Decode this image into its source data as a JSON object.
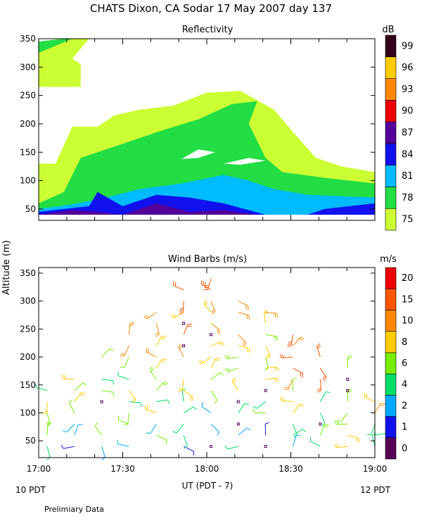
{
  "figure": {
    "title": "CHATS Dixon, CA  Sodar  17 May 2007  day 137",
    "shared_ylabel": "Altitude (m)",
    "xlabel": "UT  (PDT - 7)",
    "local_left": "10 PDT",
    "local_right": "12 PDT",
    "footer": "Prelimiary Data"
  },
  "chart_data": [
    {
      "type": "heatmap",
      "title": "Reflectivity",
      "colorbar_title": "dB",
      "x_time_range": [
        "17:00",
        "19:00"
      ],
      "ylim": [
        30,
        350
      ],
      "yticks": [
        50,
        100,
        150,
        200,
        250,
        300,
        350
      ],
      "colorbar": [
        {
          "label": "75",
          "color": "#ccff33"
        },
        {
          "label": "78",
          "color": "#22dd44"
        },
        {
          "label": "81",
          "color": "#00bbff"
        },
        {
          "label": "84",
          "color": "#1111ee"
        },
        {
          "label": "87",
          "color": "#550099"
        },
        {
          "label": "90",
          "color": "#ee0000"
        },
        {
          "label": "93",
          "color": "#ff8800"
        },
        {
          "label": "96",
          "color": "#ffcc00"
        },
        {
          "label": "99",
          "color": "#33001a"
        }
      ],
      "contours": [
        {
          "level": 75,
          "color": "#ccff33",
          "points": [
            [
              17.0,
              130
            ],
            [
              17.1,
              130
            ],
            [
              17.2,
              195
            ],
            [
              17.35,
              195
            ],
            [
              17.45,
              215
            ],
            [
              17.6,
              225
            ],
            [
              17.8,
              232
            ],
            [
              18.0,
              255
            ],
            [
              18.2,
              258
            ],
            [
              18.4,
              225
            ],
            [
              18.5,
              190
            ],
            [
              18.65,
              140
            ],
            [
              18.8,
              125
            ],
            [
              19.0,
              115
            ],
            [
              19.0,
              40
            ],
            [
              17.0,
              40
            ]
          ]
        },
        {
          "level": 75,
          "color": "#ccff33",
          "points": [
            [
              17.0,
              265
            ],
            [
              17.0,
              345
            ],
            [
              17.15,
              350
            ],
            [
              17.3,
              350
            ],
            [
              17.2,
              315
            ],
            [
              17.25,
              305
            ],
            [
              17.25,
              265
            ]
          ]
        },
        {
          "level": 78,
          "color": "#22dd44",
          "points": [
            [
              17.0,
              60
            ],
            [
              17.15,
              80
            ],
            [
              17.25,
              140
            ],
            [
              17.4,
              155
            ],
            [
              17.55,
              170
            ],
            [
              17.75,
              190
            ],
            [
              17.95,
              208
            ],
            [
              18.15,
              235
            ],
            [
              18.3,
              240
            ],
            [
              18.25,
              200
            ],
            [
              18.35,
              140
            ],
            [
              18.45,
              115
            ],
            [
              18.7,
              105
            ],
            [
              19.0,
              95
            ],
            [
              19.0,
              40
            ],
            [
              17.0,
              40
            ]
          ]
        },
        {
          "level": 78,
          "color": "#22dd44",
          "points": [
            [
              17.0,
              325
            ],
            [
              17.0,
              345
            ],
            [
              17.15,
              350
            ],
            [
              17.2,
              350
            ]
          ]
        },
        {
          "level": 81,
          "color": "#00bbff",
          "points": [
            [
              17.0,
              50
            ],
            [
              17.2,
              58
            ],
            [
              17.4,
              70
            ],
            [
              17.6,
              85
            ],
            [
              17.85,
              95
            ],
            [
              18.1,
              110
            ],
            [
              18.25,
              100
            ],
            [
              18.4,
              85
            ],
            [
              18.6,
              75
            ],
            [
              19.0,
              70
            ],
            [
              19.0,
              40
            ],
            [
              17.0,
              40
            ]
          ]
        },
        {
          "level": 84,
          "color": "#1111ee",
          "points": [
            [
              17.0,
              45
            ],
            [
              17.3,
              55
            ],
            [
              17.35,
              80
            ],
            [
              17.5,
              55
            ],
            [
              17.7,
              75
            ],
            [
              17.9,
              70
            ],
            [
              18.1,
              60
            ],
            [
              18.35,
              40
            ],
            [
              18.6,
              40
            ],
            [
              18.7,
              50
            ],
            [
              19.0,
              60
            ],
            [
              19.0,
              40
            ],
            [
              17.0,
              40
            ]
          ]
        },
        {
          "level": 87,
          "color": "#550099",
          "points": [
            [
              17.0,
              40
            ],
            [
              17.2,
              48
            ],
            [
              17.35,
              45
            ],
            [
              17.5,
              40
            ],
            [
              17.7,
              60
            ],
            [
              17.9,
              45
            ],
            [
              18.1,
              48
            ],
            [
              18.3,
              40
            ]
          ]
        }
      ],
      "holes": [
        {
          "points": [
            [
              17.85,
              138
            ],
            [
              17.95,
              155
            ],
            [
              18.05,
              150
            ],
            [
              17.95,
              140
            ]
          ]
        },
        {
          "points": [
            [
              18.1,
              130
            ],
            [
              18.25,
              140
            ],
            [
              18.35,
              135
            ],
            [
              18.2,
              128
            ]
          ]
        }
      ]
    },
    {
      "type": "scatter",
      "title": "Wind Barbs (m/s)",
      "colorbar_title": "m/s",
      "x_time_range": [
        "17:00",
        "19:00"
      ],
      "x_ticks": [
        "17:00",
        "17:30",
        "18:00",
        "18:30",
        "19:00"
      ],
      "ylim": [
        20,
        360
      ],
      "yticks": [
        50,
        100,
        150,
        200,
        250,
        300,
        350
      ],
      "colorbar": [
        {
          "label": "0",
          "color": "#550055"
        },
        {
          "label": "1",
          "color": "#1111ee"
        },
        {
          "label": "2",
          "color": "#00aaff"
        },
        {
          "label": "4",
          "color": "#00dd66"
        },
        {
          "label": "6",
          "color": "#77ee00"
        },
        {
          "label": "8",
          "color": "#ffcc00"
        },
        {
          "label": "10",
          "color": "#ff8800"
        },
        {
          "label": "15",
          "color": "#ff5500"
        },
        {
          "label": "20",
          "color": "#ee0000"
        }
      ]
    }
  ]
}
